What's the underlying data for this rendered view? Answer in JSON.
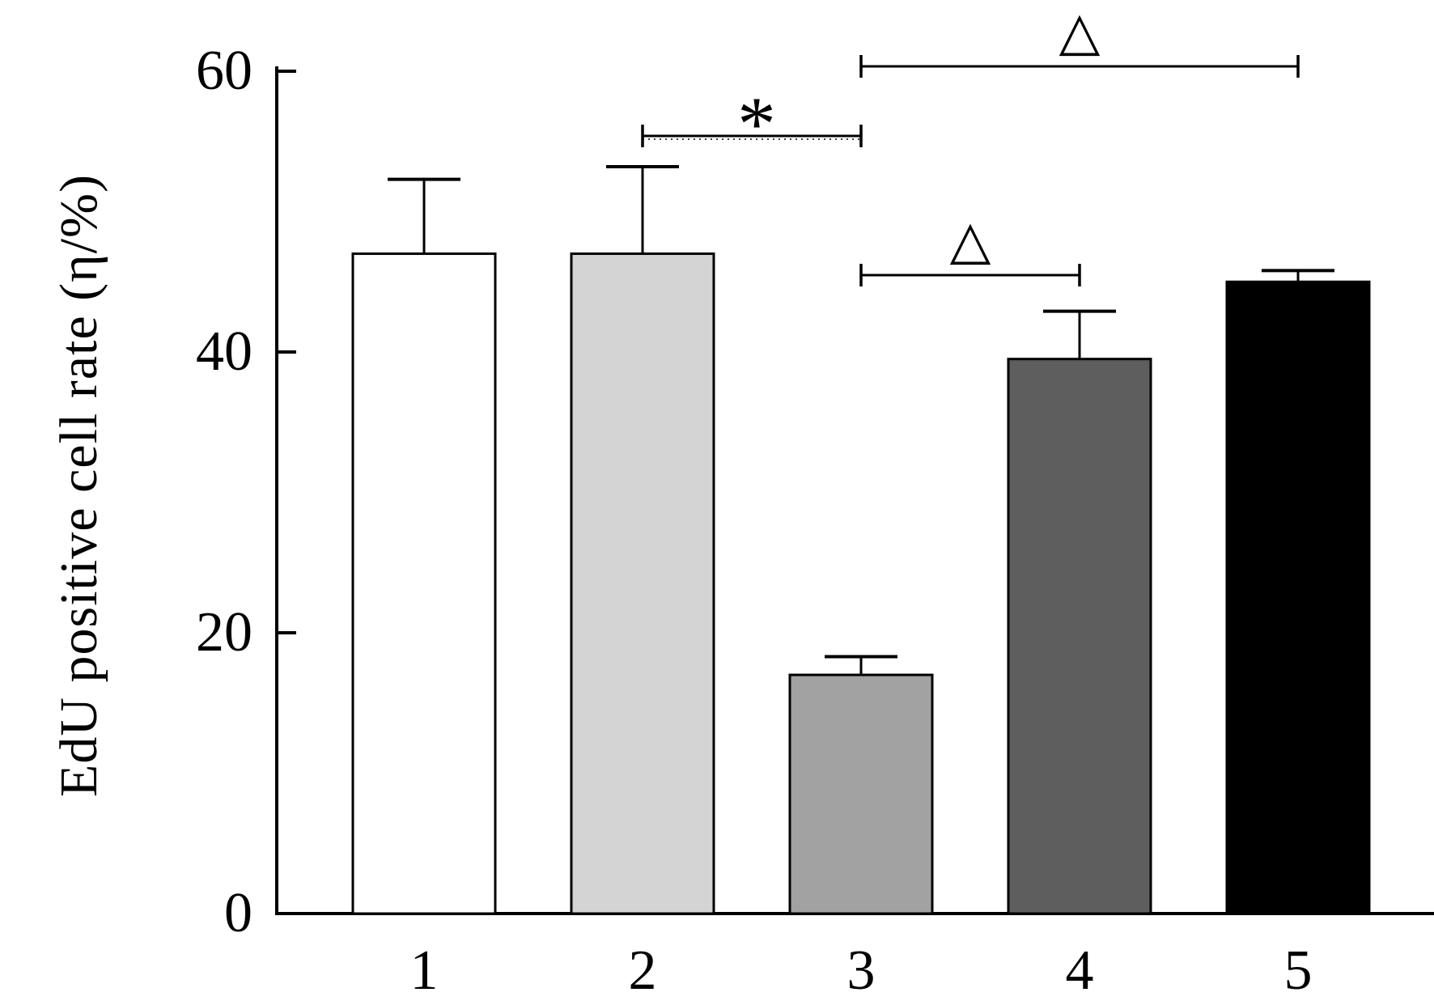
{
  "figure": {
    "background": "#ffffff",
    "ink": "#000000"
  },
  "chart_data": {
    "type": "bar",
    "title": "",
    "ylabel": "EdU positive cell rate (η/%)",
    "xlabel": "",
    "categories": [
      "1",
      "2",
      "3",
      "4",
      "5"
    ],
    "values": [
      47,
      47,
      17,
      39.5,
      45
    ],
    "errors_plus": [
      5.3,
      6.2,
      1.3,
      3.4,
      0.8
    ],
    "bar_colors": [
      "#ffffff",
      "#d4d4d4",
      "#a2a2a2",
      "#5e5e5e",
      "#000000"
    ],
    "bar_edge_color": "#000000",
    "ylim": [
      0,
      60
    ],
    "yticks": [
      0,
      20,
      40,
      60
    ],
    "grid": false,
    "legend": false,
    "error_bar_style": "upper caps only",
    "annotations": [
      {
        "symbol": "*",
        "between": [
          "2",
          "3"
        ],
        "line_style": "dotted"
      },
      {
        "symbol": "△",
        "between": [
          "3",
          "4"
        ],
        "line_style": "solid"
      },
      {
        "symbol": "△",
        "between": [
          "3",
          "5"
        ],
        "line_style": "solid"
      }
    ]
  }
}
